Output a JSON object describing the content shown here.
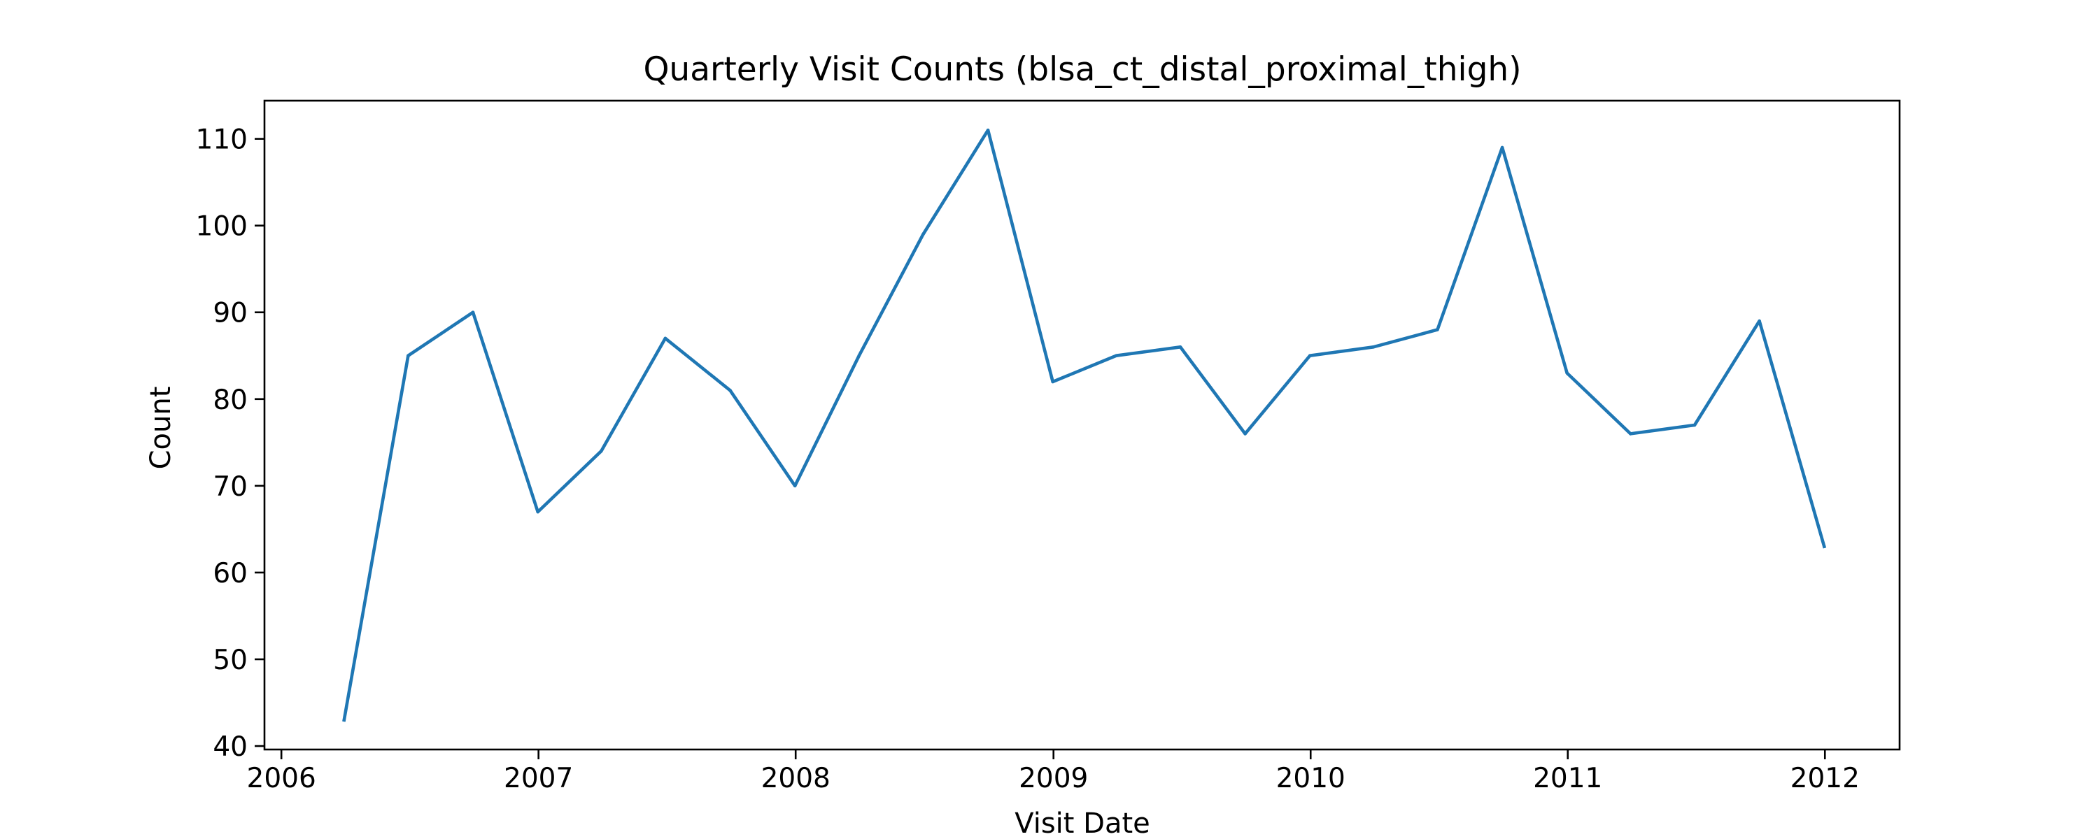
{
  "chart_data": {
    "type": "line",
    "title": "Quarterly Visit Counts (blsa_ct_distal_proximal_thigh)",
    "xlabel": "Visit Date",
    "ylabel": "Count",
    "xlim": [
      "2005-12-08",
      "2012-04-16"
    ],
    "ylim": [
      39.6,
      114.4
    ],
    "x_ticks": [
      "2006",
      "2007",
      "2008",
      "2009",
      "2010",
      "2011",
      "2012"
    ],
    "y_ticks": [
      40,
      50,
      60,
      70,
      80,
      90,
      100,
      110
    ],
    "grid": false,
    "legend": "none",
    "color": "#1f77b4",
    "series": [
      {
        "x": [
          "2006-03-31",
          "2006-06-30",
          "2006-09-30",
          "2006-12-31",
          "2007-03-31",
          "2007-06-30",
          "2007-09-30",
          "2007-12-31",
          "2008-03-31",
          "2008-06-30",
          "2008-09-30",
          "2008-12-31",
          "2009-03-31",
          "2009-06-30",
          "2009-09-30",
          "2009-12-31",
          "2010-03-31",
          "2010-06-30",
          "2010-09-30",
          "2010-12-31",
          "2011-03-31",
          "2011-06-30",
          "2011-09-30",
          "2011-12-31"
        ],
        "values": [
          43,
          85,
          90,
          67,
          74,
          87,
          81,
          70,
          85,
          99,
          111,
          82,
          85,
          86,
          76,
          85,
          86,
          88,
          109,
          83,
          76,
          77,
          89,
          63
        ]
      }
    ]
  }
}
